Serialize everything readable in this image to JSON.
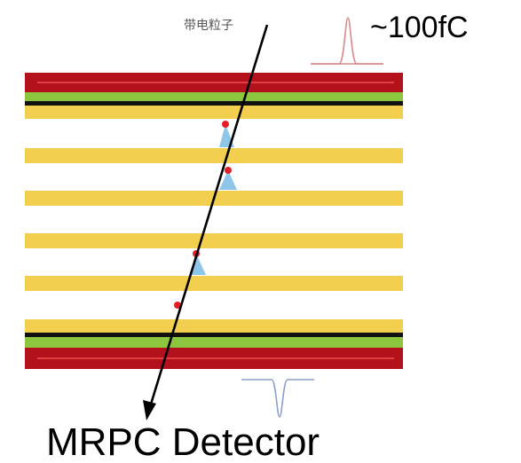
{
  "labels": {
    "particle": "带电粒子",
    "charge": "~100fC",
    "title": "MRPC Detector"
  },
  "colors": {
    "electrode_red": "#b3121c",
    "electrode_red_line": "#ff4b4b",
    "graphite_green": "#8cc63f",
    "pcb_black": "#111111",
    "glass_yellow": "#f2cf4e",
    "glass_yellow_edge": "#d9ad2a",
    "avalanche_blue": "#8ec6ea",
    "ion_red": "#e21f26",
    "signal_top": "#d98a8a",
    "signal_bottom": "#8aa0c8",
    "track": "#000000"
  },
  "icons": {
    "top_signal": "positive-pulse-icon",
    "bottom_signal": "negative-pulse-icon",
    "track_arrow": "arrow-down-icon"
  }
}
